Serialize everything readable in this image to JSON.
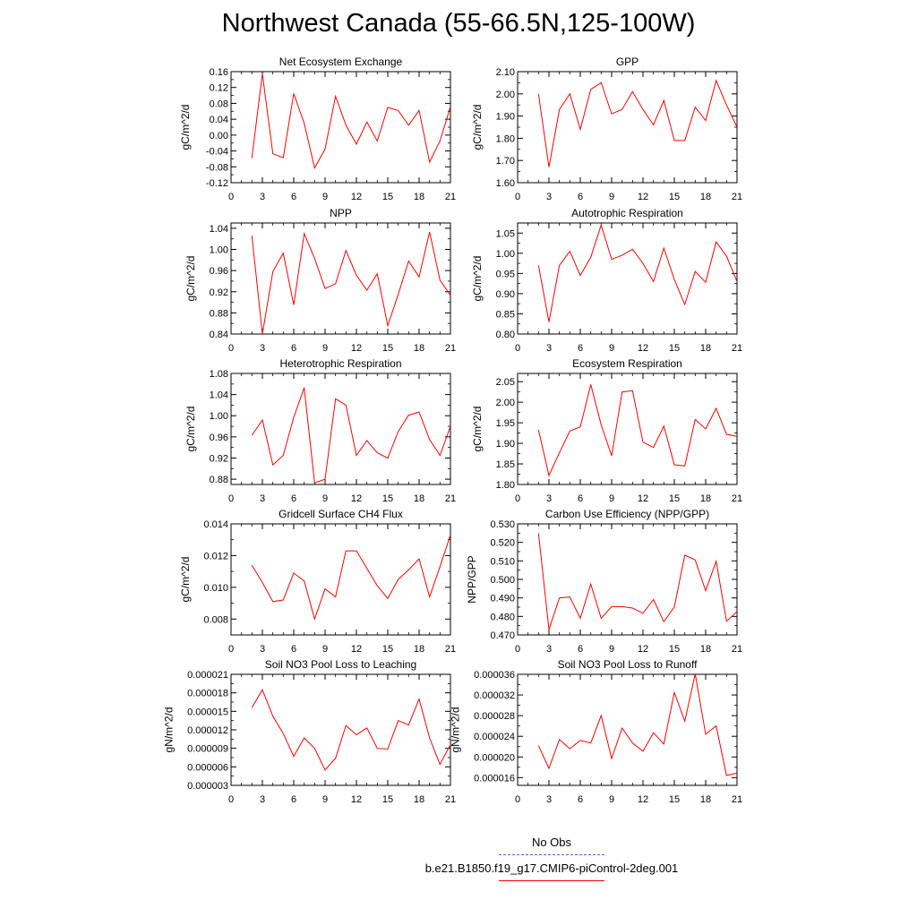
{
  "page": {
    "title": "Northwest Canada (55-66.5N,125-100W)",
    "line_color": "#ff0000",
    "obs_color": "#5b5bd6"
  },
  "legend": {
    "obs_label": "No Obs",
    "case_label": "b.e21.B1850.f19_g17.CMIP6-piControl-2deg.001"
  },
  "chart_data": [
    {
      "type": "line",
      "title": "Net Ecosystem Exchange",
      "ylabel": "gC/m^2/d",
      "xlim": [
        0,
        21
      ],
      "xticks": [
        "0",
        "3",
        "6",
        "9",
        "12",
        "15",
        "18",
        "21"
      ],
      "ylim": [
        -0.12,
        0.16
      ],
      "yticks": [
        "-0.12",
        "-0.08",
        "-0.04",
        "0.00",
        "0.04",
        "0.08",
        "0.12",
        "0.16"
      ],
      "x": [
        2,
        3,
        4,
        5,
        6,
        7,
        8,
        9,
        10,
        11,
        12,
        13,
        14,
        15,
        16,
        17,
        18,
        19,
        20,
        21
      ],
      "series": [
        {
          "values": [
            -0.058,
            0.155,
            -0.047,
            -0.057,
            0.105,
            0.03,
            -0.083,
            -0.035,
            0.098,
            0.025,
            -0.023,
            0.033,
            -0.015,
            0.07,
            0.062,
            0.025,
            0.062,
            -0.068,
            -0.015,
            0.072
          ]
        }
      ]
    },
    {
      "type": "line",
      "title": "GPP",
      "ylabel": "gC/m^2/d",
      "xlim": [
        0,
        21
      ],
      "xticks": [
        "0",
        "3",
        "6",
        "9",
        "12",
        "15",
        "18",
        "21"
      ],
      "ylim": [
        1.6,
        2.1
      ],
      "yticks": [
        "1.60",
        "1.70",
        "1.80",
        "1.90",
        "2.00",
        "2.10"
      ],
      "x": [
        2,
        3,
        4,
        5,
        6,
        7,
        8,
        9,
        10,
        11,
        12,
        13,
        14,
        15,
        16,
        17,
        18,
        19,
        20,
        21
      ],
      "series": [
        {
          "values": [
            2.0,
            1.67,
            1.93,
            2.0,
            1.84,
            2.02,
            2.05,
            1.91,
            1.93,
            2.01,
            1.93,
            1.86,
            1.97,
            1.79,
            1.79,
            1.94,
            1.88,
            2.06,
            1.95,
            1.85
          ]
        }
      ]
    },
    {
      "type": "line",
      "title": "NPP",
      "ylabel": "gC/m^2/d",
      "xlim": [
        0,
        21
      ],
      "xticks": [
        "0",
        "3",
        "6",
        "9",
        "12",
        "15",
        "18",
        "21"
      ],
      "ylim": [
        0.84,
        1.05
      ],
      "yticks": [
        "0.84",
        "0.88",
        "0.92",
        "0.96",
        "1.00",
        "1.04"
      ],
      "x": [
        2,
        3,
        4,
        5,
        6,
        7,
        8,
        9,
        10,
        11,
        12,
        13,
        14,
        15,
        16,
        17,
        18,
        19,
        20,
        21
      ],
      "series": [
        {
          "values": [
            1.026,
            0.84,
            0.958,
            0.993,
            0.895,
            1.03,
            0.983,
            0.926,
            0.935,
            0.998,
            0.951,
            0.923,
            0.954,
            0.856,
            0.915,
            0.978,
            0.948,
            1.033,
            0.942,
            0.913
          ]
        }
      ]
    },
    {
      "type": "line",
      "title": "Autotrophic Respiration",
      "ylabel": "gC/m^2/d",
      "xlim": [
        0,
        21
      ],
      "xticks": [
        "0",
        "3",
        "6",
        "9",
        "12",
        "15",
        "18",
        "21"
      ],
      "ylim": [
        0.8,
        1.075
      ],
      "yticks": [
        "0.80",
        "0.85",
        "0.90",
        "0.95",
        "1.00",
        "1.05"
      ],
      "x": [
        2,
        3,
        4,
        5,
        6,
        7,
        8,
        9,
        10,
        11,
        12,
        13,
        14,
        15,
        16,
        17,
        18,
        19,
        20,
        21
      ],
      "series": [
        {
          "values": [
            0.97,
            0.83,
            0.97,
            1.005,
            0.945,
            0.99,
            1.07,
            0.985,
            0.995,
            1.01,
            0.975,
            0.93,
            1.013,
            0.935,
            0.873,
            0.955,
            0.928,
            1.028,
            0.993,
            0.93
          ]
        }
      ]
    },
    {
      "type": "line",
      "title": "Heterotrophic Respiration",
      "ylabel": "gC/m^2/d",
      "xlim": [
        0,
        21
      ],
      "xticks": [
        "0",
        "3",
        "6",
        "9",
        "12",
        "15",
        "18",
        "21"
      ],
      "ylim": [
        0.87,
        1.08
      ],
      "yticks": [
        "0.88",
        "0.92",
        "0.96",
        "1.00",
        "1.04",
        "1.08"
      ],
      "x": [
        2,
        3,
        4,
        5,
        6,
        7,
        8,
        9,
        10,
        11,
        12,
        13,
        14,
        15,
        16,
        17,
        18,
        19,
        20,
        21
      ],
      "series": [
        {
          "values": [
            0.963,
            0.992,
            0.907,
            0.925,
            0.997,
            1.053,
            0.873,
            0.88,
            1.032,
            1.02,
            0.925,
            0.953,
            0.93,
            0.92,
            0.97,
            1.001,
            1.007,
            0.955,
            0.925,
            0.98
          ]
        }
      ]
    },
    {
      "type": "line",
      "title": "Ecosystem Respiration",
      "ylabel": "gC/m^2/d",
      "xlim": [
        0,
        21
      ],
      "xticks": [
        "0",
        "3",
        "6",
        "9",
        "12",
        "15",
        "18",
        "21"
      ],
      "ylim": [
        1.8,
        2.07
      ],
      "yticks": [
        "1.80",
        "1.85",
        "1.90",
        "1.95",
        "2.00",
        "2.05"
      ],
      "x": [
        2,
        3,
        4,
        5,
        6,
        7,
        8,
        9,
        10,
        11,
        12,
        13,
        14,
        15,
        16,
        17,
        18,
        19,
        20,
        21
      ],
      "series": [
        {
          "values": [
            1.933,
            1.822,
            1.877,
            1.93,
            1.94,
            2.043,
            1.945,
            1.87,
            2.025,
            2.028,
            1.903,
            1.89,
            1.942,
            1.848,
            1.845,
            1.958,
            1.935,
            1.985,
            1.922,
            1.917
          ]
        }
      ]
    },
    {
      "type": "line",
      "title": "Gridcell Surface CH4 Flux",
      "ylabel": "gC/m^2/d",
      "xlim": [
        0,
        21
      ],
      "xticks": [
        "0",
        "3",
        "6",
        "9",
        "12",
        "15",
        "18",
        "21"
      ],
      "ylim": [
        0.007,
        0.014
      ],
      "yticks": [
        "0.008",
        "0.010",
        "0.012",
        "0.014"
      ],
      "x": [
        2,
        3,
        4,
        5,
        6,
        7,
        8,
        9,
        10,
        11,
        12,
        13,
        14,
        15,
        16,
        17,
        18,
        19,
        20,
        21
      ],
      "series": [
        {
          "values": [
            0.0114,
            0.0103,
            0.0091,
            0.0092,
            0.0109,
            0.0104,
            0.008,
            0.0099,
            0.0094,
            0.0123,
            0.0123,
            0.0112,
            0.0101,
            0.0093,
            0.0105,
            0.0111,
            0.0118,
            0.0094,
            0.0113,
            0.0133
          ]
        }
      ]
    },
    {
      "type": "line",
      "title": "Carbon Use Efficiency (NPP/GPP)",
      "ylabel": "NPP/GPP",
      "xlim": [
        0,
        21
      ],
      "xticks": [
        "0",
        "3",
        "6",
        "9",
        "12",
        "15",
        "18",
        "21"
      ],
      "ylim": [
        0.47,
        0.53
      ],
      "yticks": [
        "0.470",
        "0.480",
        "0.490",
        "0.500",
        "0.510",
        "0.520",
        "0.530"
      ],
      "x": [
        2,
        3,
        4,
        5,
        6,
        7,
        8,
        9,
        10,
        11,
        12,
        13,
        14,
        15,
        16,
        17,
        18,
        19,
        20,
        21
      ],
      "series": [
        {
          "values": [
            0.525,
            0.473,
            0.49,
            0.4905,
            0.479,
            0.4975,
            0.479,
            0.4853,
            0.4853,
            0.4845,
            0.4817,
            0.4891,
            0.4771,
            0.4851,
            0.5131,
            0.5105,
            0.4939,
            0.5098,
            0.4774,
            0.4826
          ]
        }
      ]
    },
    {
      "type": "line",
      "title": "Soil NO3 Pool Loss to Leaching",
      "ylabel": "gN/m^2/d",
      "xlim": [
        0,
        21
      ],
      "xticks": [
        "0",
        "3",
        "6",
        "9",
        "12",
        "15",
        "18",
        "21"
      ],
      "ylim": [
        3e-06,
        2.1e-05
      ],
      "yticks": [
        "0.000003",
        "0.000006",
        "0.000009",
        "0.000012",
        "0.000015",
        "0.000018",
        "0.000021"
      ],
      "x": [
        2,
        3,
        4,
        5,
        6,
        7,
        8,
        9,
        10,
        11,
        12,
        13,
        14,
        15,
        16,
        17,
        18,
        19,
        20,
        21
      ],
      "series": [
        {
          "values": [
            1.56e-05,
            1.85e-05,
            1.42e-05,
            1.14e-05,
            7.7e-06,
            1.07e-05,
            9e-06,
            5.5e-06,
            7.4e-06,
            1.27e-05,
            1.12e-05,
            1.23e-05,
            9e-06,
            8.9e-06,
            1.35e-05,
            1.28e-05,
            1.7e-05,
            1.07e-05,
            6.4e-06,
            9.6e-06
          ]
        }
      ]
    },
    {
      "type": "line",
      "title": "Soil NO3 Pool Loss to Runoff",
      "ylabel": "gN/m^2/d",
      "xlim": [
        0,
        21
      ],
      "xticks": [
        "0",
        "3",
        "6",
        "9",
        "12",
        "15",
        "18",
        "21"
      ],
      "ylim": [
        1.45e-05,
        3.6e-05
      ],
      "yticks": [
        "0.000016",
        "0.000020",
        "0.000024",
        "0.000028",
        "0.000032",
        "0.000036"
      ],
      "x": [
        2,
        3,
        4,
        5,
        6,
        7,
        8,
        9,
        10,
        11,
        12,
        13,
        14,
        15,
        16,
        17,
        18,
        19,
        20,
        21
      ],
      "series": [
        {
          "values": [
            2.22e-05,
            1.78e-05,
            2.34e-05,
            2.16e-05,
            2.32e-05,
            2.27e-05,
            2.8e-05,
            1.97e-05,
            2.56e-05,
            2.27e-05,
            2.11e-05,
            2.47e-05,
            2.25e-05,
            3.25e-05,
            2.69e-05,
            3.61e-05,
            2.44e-05,
            2.6e-05,
            1.64e-05,
            1.69e-05
          ]
        }
      ]
    }
  ]
}
